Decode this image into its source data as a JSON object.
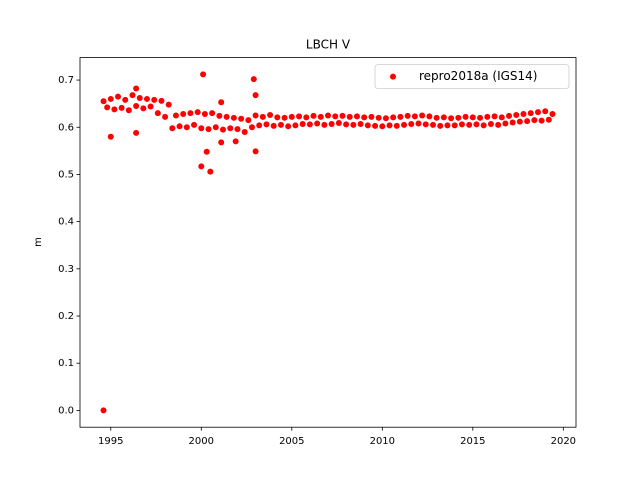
{
  "chart_data": {
    "type": "scatter",
    "title": "LBCH V",
    "ylabel": "m",
    "xlim": [
      1993.3,
      2020.7
    ],
    "ylim": [
      -0.0356,
      0.7476
    ],
    "xticks": [
      1995,
      2000,
      2005,
      2010,
      2015,
      2020
    ],
    "yticks": [
      {
        "value": 0,
        "label": "0.0"
      },
      0.1,
      0.2,
      0.3,
      0.4,
      0.5,
      0.6,
      0.7
    ],
    "legend": "upper right",
    "x": [
      1994.6,
      1994.8,
      1995.0,
      1995.2,
      1995.4,
      1995.6,
      1995.8,
      1996.0,
      1996.2,
      1996.4,
      1996.6,
      1996.8,
      1997.0,
      1997.2,
      1997.4,
      1997.6,
      1997.8,
      1998.0,
      1998.2,
      1998.4,
      1998.6,
      1998.8,
      1999.0,
      1999.2,
      1999.4,
      1999.6,
      1999.8,
      2000.0,
      2000.2,
      2000.4,
      2000.6,
      2000.8,
      2001.0,
      2001.2,
      2001.4,
      2001.6,
      2001.8,
      2002.0,
      2002.2,
      2002.4,
      2002.6,
      2002.8,
      2003.0,
      2003.2,
      2003.4,
      2003.6,
      2003.8,
      2004.0,
      2004.2,
      2004.4,
      2004.6,
      2004.8,
      2005.0,
      2005.2,
      2005.4,
      2005.6,
      2005.8,
      2006.0,
      2006.2,
      2006.4,
      2006.6,
      2006.8,
      2007.0,
      2007.2,
      2007.4,
      2007.6,
      2007.8,
      2008.0,
      2008.2,
      2008.4,
      2008.6,
      2008.8,
      2009.0,
      2009.2,
      2009.4,
      2009.6,
      2009.8,
      2010.0,
      2010.2,
      2010.4,
      2010.6,
      2010.8,
      2011.0,
      2011.2,
      2011.4,
      2011.6,
      2011.8,
      2012.0,
      2012.2,
      2012.4,
      2012.6,
      2012.8,
      2013.0,
      2013.2,
      2013.4,
      2013.6,
      2013.8,
      2014.0,
      2014.2,
      2014.4,
      2014.6,
      2014.8,
      2015.0,
      2015.2,
      2015.4,
      2015.6,
      2015.8,
      2016.0,
      2016.2,
      2016.4,
      2016.6,
      2016.8,
      2017.0,
      2017.2,
      2017.4,
      2017.6,
      2017.8,
      2018.0,
      2018.2,
      2018.4,
      2018.6,
      2018.8,
      2019.0,
      2019.2,
      2019.4,
      1994.6,
      1995.0,
      1996.4,
      1996.4,
      2000.1,
      2000.0,
      2000.3,
      2000.5,
      2001.1,
      2001.1,
      2001.9,
      2002.9,
      2003.0,
      2003.0
    ],
    "series": [
      {
        "name": "repro2018a (IGS14)",
        "color": "#ff0000",
        "values": [
          0.655,
          0.642,
          0.66,
          0.638,
          0.665,
          0.641,
          0.658,
          0.636,
          0.668,
          0.645,
          0.662,
          0.64,
          0.66,
          0.644,
          0.658,
          0.63,
          0.656,
          0.622,
          0.648,
          0.598,
          0.625,
          0.602,
          0.628,
          0.6,
          0.63,
          0.605,
          0.632,
          0.598,
          0.628,
          0.596,
          0.63,
          0.6,
          0.624,
          0.595,
          0.622,
          0.598,
          0.62,
          0.596,
          0.618,
          0.59,
          0.615,
          0.6,
          0.625,
          0.604,
          0.622,
          0.606,
          0.626,
          0.603,
          0.621,
          0.605,
          0.62,
          0.602,
          0.622,
          0.604,
          0.623,
          0.607,
          0.621,
          0.606,
          0.624,
          0.608,
          0.622,
          0.605,
          0.625,
          0.607,
          0.623,
          0.609,
          0.624,
          0.606,
          0.622,
          0.605,
          0.623,
          0.607,
          0.621,
          0.604,
          0.622,
          0.603,
          0.62,
          0.602,
          0.619,
          0.604,
          0.621,
          0.603,
          0.622,
          0.605,
          0.624,
          0.607,
          0.623,
          0.608,
          0.625,
          0.606,
          0.623,
          0.605,
          0.62,
          0.603,
          0.621,
          0.604,
          0.619,
          0.604,
          0.62,
          0.606,
          0.622,
          0.605,
          0.621,
          0.606,
          0.62,
          0.604,
          0.622,
          0.607,
          0.623,
          0.605,
          0.621,
          0.608,
          0.624,
          0.61,
          0.626,
          0.612,
          0.628,
          0.613,
          0.63,
          0.615,
          0.632,
          0.614,
          0.634,
          0.616,
          0.628,
          0.0,
          0.58,
          0.682,
          0.588,
          0.712,
          0.517,
          0.548,
          0.506,
          0.653,
          0.568,
          0.57,
          0.702,
          0.668,
          0.549
        ]
      }
    ]
  }
}
